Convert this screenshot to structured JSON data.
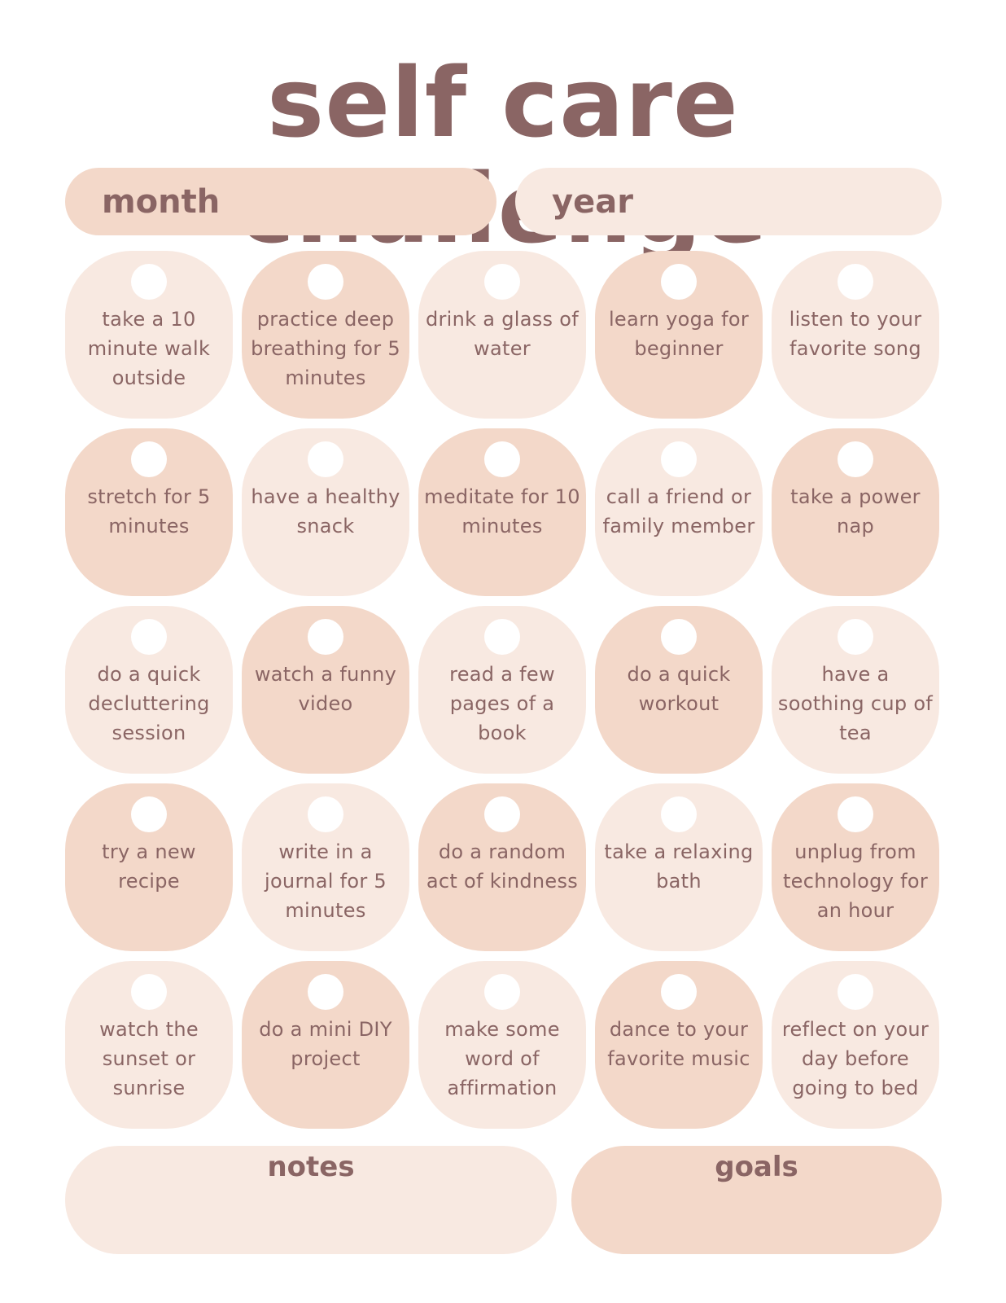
{
  "title": "self care challenge",
  "fields": {
    "month_label": "month",
    "year_label": "year"
  },
  "colors": {
    "text": "#8a6564",
    "tile_dark": "#f3d8c9",
    "tile_light": "#f8e9e1",
    "checkbox": "#ffffff"
  },
  "tasks": [
    {
      "text": "take a 10 minute walk outside",
      "tone": "light"
    },
    {
      "text": "practice deep breathing for 5 minutes",
      "tone": "dark"
    },
    {
      "text": "drink a glass of water",
      "tone": "light"
    },
    {
      "text": "learn yoga for beginner",
      "tone": "dark"
    },
    {
      "text": "listen to your favorite song",
      "tone": "light"
    },
    {
      "text": "stretch for 5 minutes",
      "tone": "dark"
    },
    {
      "text": "have a healthy snack",
      "tone": "light"
    },
    {
      "text": "meditate for 10 minutes",
      "tone": "dark"
    },
    {
      "text": "call a friend or family member",
      "tone": "light"
    },
    {
      "text": "take a power nap",
      "tone": "dark"
    },
    {
      "text": "do a quick decluttering session",
      "tone": "light"
    },
    {
      "text": "watch a funny video",
      "tone": "dark"
    },
    {
      "text": "read a few pages of a book",
      "tone": "light"
    },
    {
      "text": "do a quick workout",
      "tone": "dark"
    },
    {
      "text": "have a soothing cup of tea",
      "tone": "light"
    },
    {
      "text": "try a new recipe",
      "tone": "dark"
    },
    {
      "text": "write in a journal for 5 minutes",
      "tone": "light"
    },
    {
      "text": "do a random act of kindness",
      "tone": "dark"
    },
    {
      "text": "take a relaxing bath",
      "tone": "light"
    },
    {
      "text": "unplug from technology for an hour",
      "tone": "dark"
    },
    {
      "text": "watch the sunset or sunrise",
      "tone": "light"
    },
    {
      "text": "do a mini DIY project",
      "tone": "dark"
    },
    {
      "text": "make some word of affirmation",
      "tone": "light"
    },
    {
      "text": "dance to your favorite music",
      "tone": "dark"
    },
    {
      "text": "reflect on your day before going to bed",
      "tone": "light"
    }
  ],
  "notes_label": "notes",
  "goals_label": "goals"
}
